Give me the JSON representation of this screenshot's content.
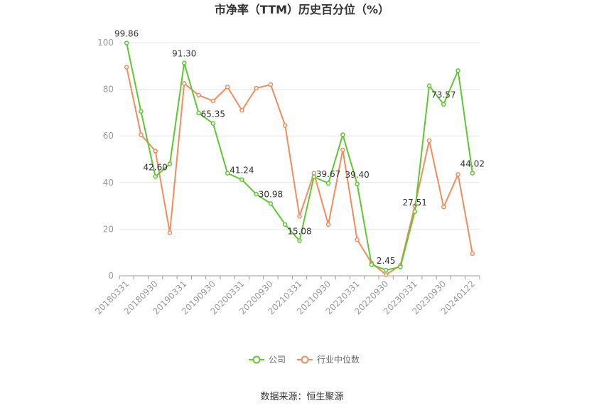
{
  "chart_data": {
    "type": "line",
    "title": "市净率（TTM）历史百分位（%）",
    "ylim": [
      0,
      100
    ],
    "yticks": [
      "0",
      "20",
      "40",
      "60",
      "80",
      "100"
    ],
    "xtick_labels": [
      "20180331",
      "20180930",
      "20190331",
      "20190930",
      "20200331",
      "20200930",
      "20210331",
      "20210930",
      "20220331",
      "20220930",
      "20230331",
      "20230930",
      "20240122"
    ],
    "grid": true,
    "legend_position": "bottom",
    "series": [
      {
        "name": "公司",
        "color": "#5ec832",
        "values": [
          99.86,
          70.5,
          42.6,
          48.0,
          91.3,
          69.8,
          65.35,
          44.0,
          41.24,
          35.0,
          30.98,
          22.0,
          15.08,
          42.5,
          39.67,
          60.5,
          39.4,
          4.8,
          2.45,
          3.8,
          27.51,
          81.5,
          73.57,
          88.0,
          44.02
        ]
      },
      {
        "name": "行业中位数",
        "color": "#f28c5c",
        "values": [
          89.5,
          60.5,
          53.5,
          18.5,
          82.5,
          77.5,
          75.0,
          81.0,
          71.0,
          80.5,
          82.0,
          64.5,
          25.5,
          44.0,
          22.0,
          54.0,
          15.5,
          5.5,
          0.5,
          4.5,
          30.0,
          58.0,
          29.5,
          43.5,
          9.5
        ]
      }
    ],
    "data_labels": [
      {
        "index": 0,
        "text": "99.86"
      },
      {
        "index": 2,
        "text": "42.60"
      },
      {
        "index": 4,
        "text": "91.30"
      },
      {
        "index": 6,
        "text": "65.35"
      },
      {
        "index": 8,
        "text": "41.24"
      },
      {
        "index": 10,
        "text": "30.98"
      },
      {
        "index": 12,
        "text": "15.08"
      },
      {
        "index": 14,
        "text": "39.67"
      },
      {
        "index": 16,
        "text": "39.40"
      },
      {
        "index": 18,
        "text": "2.45"
      },
      {
        "index": 20,
        "text": "27.51"
      },
      {
        "index": 22,
        "text": "73.57"
      },
      {
        "index": 24,
        "text": "44.02"
      }
    ]
  },
  "source_text": "数据来源：恒生聚源"
}
